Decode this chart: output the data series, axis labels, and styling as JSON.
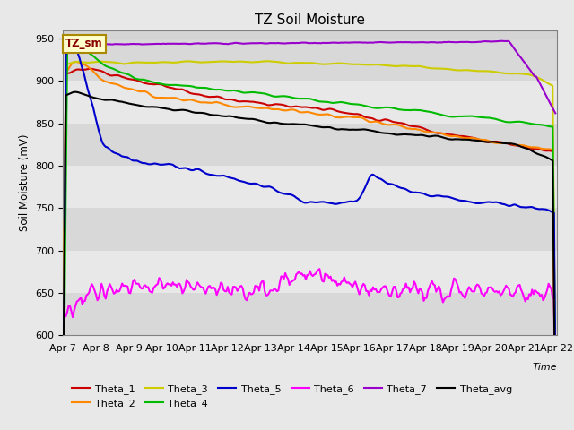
{
  "title": "TZ Soil Moisture",
  "xlabel": "Time",
  "ylabel": "Soil Moisture (mV)",
  "ylim": [
    600,
    960
  ],
  "yticks": [
    600,
    650,
    700,
    750,
    800,
    850,
    900,
    950
  ],
  "n_points": 360,
  "legend_label": "TZ_sm",
  "colors": {
    "Theta_1": "#cc0000",
    "Theta_2": "#ff8800",
    "Theta_3": "#cccc00",
    "Theta_4": "#00bb00",
    "Theta_5": "#0000cc",
    "Theta_6": "#ff00ff",
    "Theta_7": "#9900cc",
    "Theta_avg": "#000000"
  },
  "x_tick_labels": [
    "Apr 7",
    "Apr 8",
    "Apr 9",
    "Apr 10",
    "Apr 11",
    "Apr 12",
    "Apr 13",
    "Apr 14",
    "Apr 15",
    "Apr 16",
    "Apr 17",
    "Apr 18",
    "Apr 19",
    "Apr 20",
    "Apr 21",
    "Apr 22"
  ],
  "x_tick_positions": [
    0,
    24,
    48,
    72,
    96,
    120,
    144,
    168,
    192,
    216,
    240,
    264,
    288,
    312,
    336,
    360
  ],
  "band_colors": [
    "#d8d8d8",
    "#e8e8e8"
  ],
  "fig_bg": "#e8e8e8"
}
